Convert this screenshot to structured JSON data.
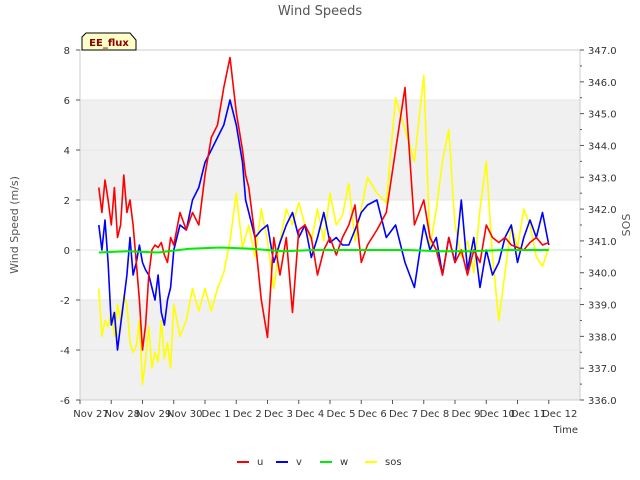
{
  "chart_data": {
    "type": "line",
    "title": "Wind Speeds",
    "xlabel": "Time",
    "ylabel": "Wind Speed (m/s)",
    "y2label": "SOS",
    "badge": "EE_flux",
    "ylim": [
      -6,
      8
    ],
    "y2lim": [
      336.0,
      347.0
    ],
    "xlim": [
      0,
      16
    ],
    "yticks": [
      "-6",
      "-4",
      "-2",
      "0",
      "2",
      "4",
      "6",
      "8"
    ],
    "y2ticks": [
      "336.0",
      "337.0",
      "338.0",
      "339.0",
      "340.0",
      "341.0",
      "342.0",
      "343.0",
      "344.0",
      "345.0",
      "346.0",
      "347.0"
    ],
    "xticks": [
      "Nov 27",
      "Nov 28",
      "Nov 29",
      "Nov 30",
      "Dec 1",
      "Dec 2",
      "Dec 3",
      "Dec 4",
      "Dec 5",
      "Dec 6",
      "Dec 7",
      "Dec 8",
      "Dec 9",
      "Dec 10",
      "Dec 11",
      "Dec 12"
    ],
    "grid": "horizontal bands",
    "legend_position": "bottom-center",
    "x_units": "days since Nov 27",
    "series": [
      {
        "name": "u",
        "color": "#ff0000",
        "axis": "left",
        "x": [
          0.6,
          0.7,
          0.8,
          0.9,
          1.0,
          1.1,
          1.2,
          1.3,
          1.4,
          1.5,
          1.6,
          1.7,
          1.8,
          1.9,
          2.0,
          2.1,
          2.2,
          2.3,
          2.4,
          2.5,
          2.6,
          2.7,
          2.8,
          2.9,
          3.0,
          3.2,
          3.4,
          3.6,
          3.8,
          4.0,
          4.2,
          4.4,
          4.6,
          4.8,
          5.0,
          5.2,
          5.3,
          5.4,
          5.5,
          5.6,
          5.8,
          6.0,
          6.2,
          6.4,
          6.6,
          6.8,
          7.0,
          7.2,
          7.4,
          7.6,
          7.8,
          8.0,
          8.2,
          8.4,
          8.6,
          8.8,
          9.0,
          9.2,
          9.5,
          9.8,
          10.1,
          10.4,
          10.7,
          11.0,
          11.2,
          11.4,
          11.6,
          11.8,
          12.0,
          12.2,
          12.4,
          12.6,
          12.8,
          13.0,
          13.2,
          13.4,
          13.6,
          13.8,
          14.0,
          14.2,
          14.4,
          14.6,
          14.8,
          15.0
        ],
        "values": [
          2.5,
          1.5,
          2.8,
          2.0,
          1.0,
          2.5,
          0.5,
          1.0,
          3.0,
          1.5,
          2.0,
          1.0,
          -0.5,
          -2.0,
          -4.0,
          -3.0,
          -1.0,
          0.0,
          0.2,
          0.1,
          0.3,
          -0.2,
          -0.5,
          0.5,
          0.2,
          1.5,
          0.8,
          1.5,
          1.0,
          3.0,
          4.5,
          5.0,
          6.5,
          7.7,
          5.5,
          4.0,
          3.0,
          2.5,
          1.5,
          0.5,
          -2.0,
          -3.5,
          0.5,
          -1.0,
          0.5,
          -2.5,
          0.8,
          1.0,
          0.5,
          -1.0,
          0.0,
          0.5,
          -0.2,
          0.5,
          1.0,
          1.8,
          -0.5,
          0.2,
          0.8,
          1.5,
          4.0,
          6.5,
          1.0,
          2.0,
          0.5,
          0.0,
          -1.0,
          0.5,
          -0.5,
          0.0,
          -1.0,
          0.0,
          -0.5,
          1.0,
          0.5,
          0.3,
          0.5,
          0.2,
          0.1,
          0.0,
          0.3,
          0.5,
          0.2,
          0.3
        ]
      },
      {
        "name": "v",
        "color": "#0000ff",
        "axis": "left",
        "x": [
          0.6,
          0.7,
          0.8,
          0.9,
          1.0,
          1.1,
          1.2,
          1.3,
          1.4,
          1.5,
          1.6,
          1.7,
          1.8,
          1.9,
          2.0,
          2.1,
          2.2,
          2.3,
          2.4,
          2.5,
          2.6,
          2.7,
          2.8,
          2.9,
          3.0,
          3.2,
          3.4,
          3.6,
          3.8,
          4.0,
          4.2,
          4.4,
          4.6,
          4.8,
          5.0,
          5.2,
          5.3,
          5.4,
          5.5,
          5.6,
          5.8,
          6.0,
          6.2,
          6.4,
          6.6,
          6.8,
          7.0,
          7.2,
          7.4,
          7.6,
          7.8,
          8.0,
          8.2,
          8.4,
          8.6,
          8.8,
          9.0,
          9.2,
          9.5,
          9.8,
          10.1,
          10.4,
          10.7,
          11.0,
          11.2,
          11.4,
          11.6,
          11.8,
          12.0,
          12.2,
          12.4,
          12.6,
          12.8,
          13.0,
          13.2,
          13.4,
          13.6,
          13.8,
          14.0,
          14.2,
          14.4,
          14.6,
          14.8,
          15.0
        ],
        "values": [
          1.0,
          0.0,
          1.2,
          -0.5,
          -3.0,
          -2.5,
          -4.0,
          -3.0,
          -2.0,
          -1.0,
          0.5,
          -1.0,
          -0.5,
          0.2,
          -0.5,
          -0.8,
          -1.0,
          -1.5,
          -2.0,
          -1.0,
          -2.5,
          -3.0,
          -2.0,
          -1.5,
          0.0,
          1.0,
          0.8,
          2.0,
          2.5,
          3.5,
          4.0,
          4.5,
          5.0,
          6.0,
          5.0,
          3.5,
          2.0,
          1.5,
          1.0,
          0.5,
          0.8,
          1.0,
          -0.5,
          0.3,
          1.0,
          1.5,
          0.5,
          1.0,
          -0.3,
          0.5,
          1.5,
          0.3,
          0.5,
          0.2,
          0.2,
          0.8,
          1.5,
          1.8,
          2.0,
          0.5,
          1.0,
          -0.5,
          -1.5,
          1.0,
          0.0,
          0.5,
          -1.0,
          0.5,
          -0.5,
          2.0,
          -0.8,
          0.5,
          -1.5,
          0.0,
          -1.0,
          -0.5,
          0.5,
          1.0,
          -0.5,
          0.5,
          1.2,
          0.5,
          1.5,
          0.2
        ]
      },
      {
        "name": "w",
        "color": "#00ee00",
        "axis": "left",
        "x": [
          0.6,
          1.5,
          2.5,
          3.5,
          4.5,
          5.5,
          6.5,
          7.5,
          8.5,
          9.5,
          10.5,
          11.5,
          12.5,
          13.5,
          14.5,
          15.0
        ],
        "values": [
          -0.1,
          -0.05,
          -0.1,
          0.05,
          0.1,
          0.05,
          -0.05,
          0.0,
          0.0,
          0.0,
          0.0,
          -0.05,
          -0.05,
          0.0,
          0.0,
          0.0
        ]
      },
      {
        "name": "sos",
        "color": "#ffff00",
        "axis": "right",
        "x": [
          0.6,
          0.7,
          0.8,
          0.9,
          1.0,
          1.1,
          1.2,
          1.3,
          1.4,
          1.5,
          1.6,
          1.7,
          1.8,
          1.9,
          2.0,
          2.1,
          2.2,
          2.3,
          2.4,
          2.5,
          2.6,
          2.7,
          2.8,
          2.9,
          3.0,
          3.2,
          3.4,
          3.6,
          3.8,
          4.0,
          4.2,
          4.4,
          4.6,
          4.8,
          5.0,
          5.2,
          5.4,
          5.6,
          5.8,
          6.0,
          6.2,
          6.4,
          6.6,
          6.8,
          7.0,
          7.2,
          7.4,
          7.6,
          7.8,
          8.0,
          8.2,
          8.4,
          8.6,
          8.8,
          9.0,
          9.2,
          9.5,
          9.8,
          10.1,
          10.4,
          10.7,
          11.0,
          11.2,
          11.4,
          11.6,
          11.8,
          12.0,
          12.2,
          12.4,
          12.6,
          12.8,
          13.0,
          13.2,
          13.4,
          13.6,
          13.8,
          14.0,
          14.2,
          14.4,
          14.6,
          14.8,
          15.0
        ],
        "values": [
          339.5,
          338.0,
          338.5,
          338.3,
          338.8,
          338.0,
          339.0,
          338.5,
          339.3,
          339.0,
          337.8,
          337.5,
          337.7,
          338.5,
          336.5,
          337.3,
          338.3,
          337.0,
          337.5,
          337.2,
          338.5,
          337.3,
          337.8,
          337.0,
          339.0,
          338.0,
          338.5,
          339.5,
          338.8,
          339.5,
          338.8,
          339.5,
          340.0,
          341.0,
          342.5,
          340.8,
          341.5,
          340.5,
          342.0,
          341.0,
          339.5,
          341.0,
          342.0,
          341.5,
          342.2,
          341.5,
          341.0,
          342.0,
          341.0,
          342.5,
          341.5,
          341.8,
          342.8,
          341.0,
          342.0,
          343.0,
          342.5,
          342.2,
          345.5,
          344.5,
          343.5,
          346.2,
          340.8,
          342.0,
          343.5,
          344.5,
          341.5,
          340.5,
          341.0,
          340.0,
          342.0,
          343.5,
          340.5,
          338.5,
          340.0,
          341.5,
          340.8,
          342.0,
          341.5,
          340.5,
          340.2,
          340.8
        ]
      }
    ]
  }
}
